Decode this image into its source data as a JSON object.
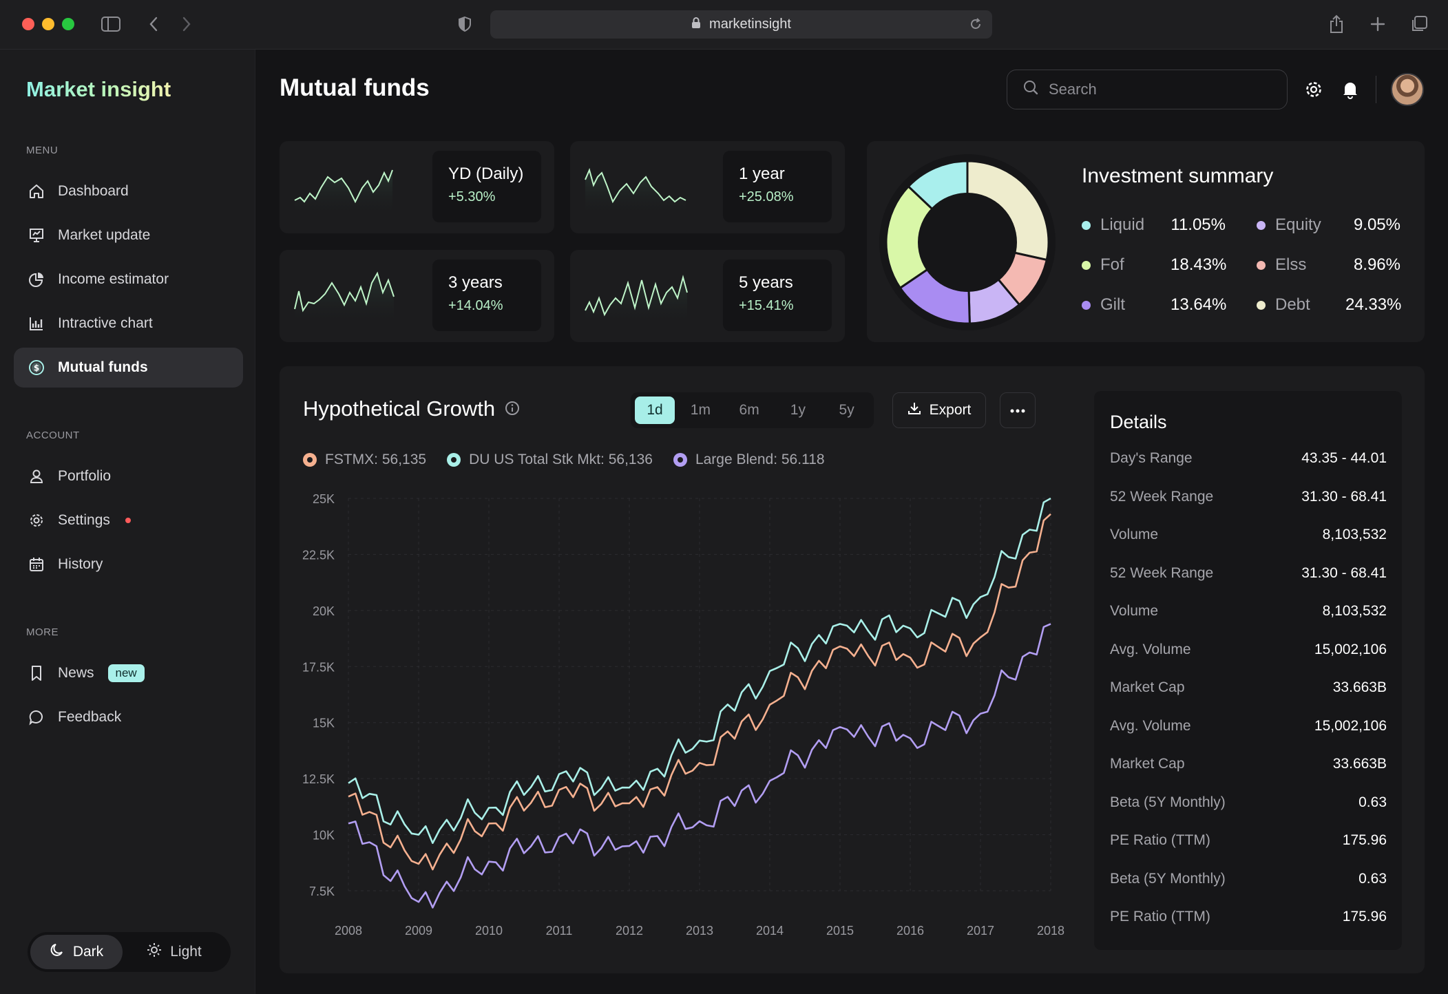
{
  "browser": {
    "url": "marketinsight"
  },
  "sidebar": {
    "brand": "Market insight",
    "menu_label": "MENU",
    "menu": [
      {
        "label": "Dashboard",
        "icon": "home-icon"
      },
      {
        "label": "Market update",
        "icon": "presentation-icon"
      },
      {
        "label": "Income estimator",
        "icon": "pie-chart-icon"
      },
      {
        "label": "Intractive chart",
        "icon": "bar-chart-icon"
      },
      {
        "label": "Mutual funds",
        "icon": "dollar-coin-icon",
        "active": true
      }
    ],
    "account_label": "ACCOUNT",
    "account": [
      {
        "label": "Portfolio",
        "icon": "user-icon"
      },
      {
        "label": "Settings",
        "icon": "gear-icon"
      },
      {
        "label": "History",
        "icon": "calendar-icon"
      }
    ],
    "more_label": "MORE",
    "more": [
      {
        "label": "News",
        "icon": "bookmark-icon",
        "badge": "new"
      },
      {
        "label": "Feedback",
        "icon": "chat-icon"
      }
    ],
    "theme": {
      "dark": "Dark",
      "light": "Light"
    }
  },
  "header": {
    "title": "Mutual funds",
    "search_placeholder": "Search"
  },
  "returns": [
    {
      "label": "YD (Daily)",
      "value": "+5.30%"
    },
    {
      "label": "1 year",
      "value": "+25.08%"
    },
    {
      "label": "3 years",
      "value": "+14.04%"
    },
    {
      "label": "5 years",
      "value": "+15.41%"
    }
  ],
  "investment_summary": {
    "title": "Investment summary",
    "items": [
      {
        "name": "Liquid",
        "pct": "11.05%",
        "color": "#a9efed"
      },
      {
        "name": "Equity",
        "pct": "9.05%",
        "color": "#c9b5f5"
      },
      {
        "name": "Fof",
        "pct": "18.43%",
        "color": "#d9f7a8"
      },
      {
        "name": "Elss",
        "pct": "8.96%",
        "color": "#f4b9b2"
      },
      {
        "name": "Gilt",
        "pct": "13.64%",
        "color": "#a98cf2"
      },
      {
        "name": "Debt",
        "pct": "24.33%",
        "color": "#eeeccd"
      }
    ]
  },
  "growth": {
    "title": "Hypothetical Growth",
    "ranges": [
      "1d",
      "1m",
      "6m",
      "1y",
      "5y"
    ],
    "active_range": "1d",
    "export_label": "Export",
    "legend": [
      {
        "text": "FSTMX: 56,135",
        "color": "#f5b08f"
      },
      {
        "text": "DU US Total Stk Mkt: 56,136",
        "color": "#a9efe8"
      },
      {
        "text": "Large Blend: 56.118",
        "color": "#b29ef2"
      }
    ]
  },
  "chart_data": {
    "type": "line",
    "x": [
      "2008",
      "2009",
      "2010",
      "2011",
      "2012",
      "2013",
      "2014",
      "2015",
      "2016",
      "2017",
      "2018"
    ],
    "y_ticks": [
      "25K",
      "22.5K",
      "20K",
      "17.5K",
      "15K",
      "12.5K",
      "10K",
      "7.5K"
    ],
    "ylim": [
      7500,
      25000
    ],
    "grid": true,
    "series": [
      {
        "name": "DU US Total Stk Mkt",
        "color": "#a9efe8",
        "values": [
          12300,
          10000,
          11200,
          12700,
          12100,
          14200,
          17300,
          19400,
          19200,
          20600,
          25000
        ]
      },
      {
        "name": "FSTMX",
        "color": "#f5b08f",
        "values": [
          11700,
          8700,
          10500,
          12000,
          11400,
          13200,
          15800,
          18400,
          17900,
          18800,
          24300
        ]
      },
      {
        "name": "Large Blend",
        "color": "#b29ef2",
        "values": [
          10500,
          7000,
          8800,
          9900,
          9500,
          10600,
          12400,
          14800,
          14300,
          15400,
          19400
        ]
      }
    ]
  },
  "details": {
    "title": "Details",
    "rows": [
      {
        "k": "Day's Range",
        "v": "43.35 - 44.01"
      },
      {
        "k": "52 Week Range",
        "v": "31.30 - 68.41"
      },
      {
        "k": "Volume",
        "v": "8,103,532"
      },
      {
        "k": "52 Week Range",
        "v": "31.30 - 68.41"
      },
      {
        "k": "Volume",
        "v": "8,103,532"
      },
      {
        "k": "Avg. Volume",
        "v": "15,002,106"
      },
      {
        "k": "Market Cap",
        "v": "33.663B"
      },
      {
        "k": "Avg. Volume",
        "v": "15,002,106"
      },
      {
        "k": "Market Cap",
        "v": "33.663B"
      },
      {
        "k": "Beta (5Y Monthly)",
        "v": "0.63"
      },
      {
        "k": "PE Ratio (TTM)",
        "v": "175.96"
      },
      {
        "k": "Beta (5Y Monthly)",
        "v": "0.63"
      },
      {
        "k": "PE Ratio (TTM)",
        "v": "175.96"
      }
    ]
  }
}
